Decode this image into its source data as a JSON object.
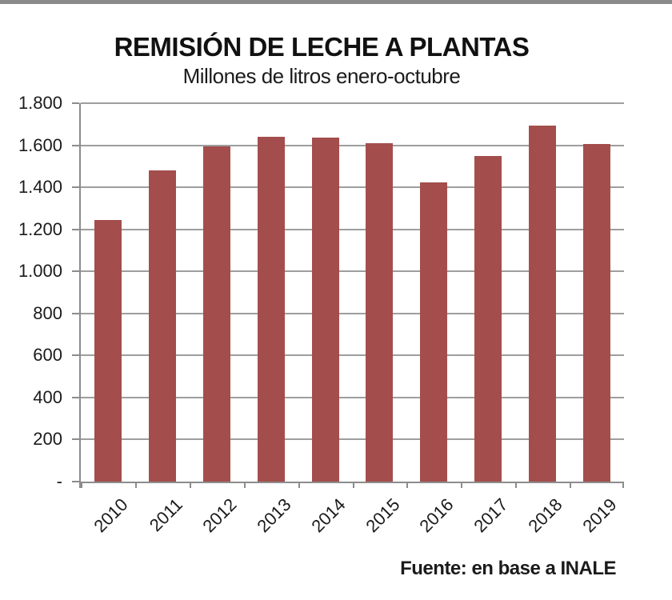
{
  "source_note": "Fuente: en base a INALE",
  "chart_data": {
    "type": "bar",
    "title": "REMISIÓN DE LECHE A PLANTAS",
    "subtitle": "Millones de litros enero-octubre",
    "categories": [
      "2010",
      "2011",
      "2012",
      "2013",
      "2014",
      "2015",
      "2016",
      "2017",
      "2018",
      "2019"
    ],
    "values": [
      1245,
      1480,
      1595,
      1640,
      1635,
      1610,
      1425,
      1550,
      1695,
      1605
    ],
    "unit": "millones de litros",
    "ylim": [
      0,
      1800
    ],
    "ytick_interval": 200,
    "ytick_labels_bottom_to_top": [
      "-",
      "200",
      "400",
      "600",
      "800",
      "1.000",
      "1.200",
      "1.400",
      "1.600",
      "1.800"
    ],
    "grid": true,
    "legend": "none",
    "bar_color": "#a34e4c",
    "gridline_color": "#9e9e9e",
    "axis_color": "#8c8c8c"
  }
}
